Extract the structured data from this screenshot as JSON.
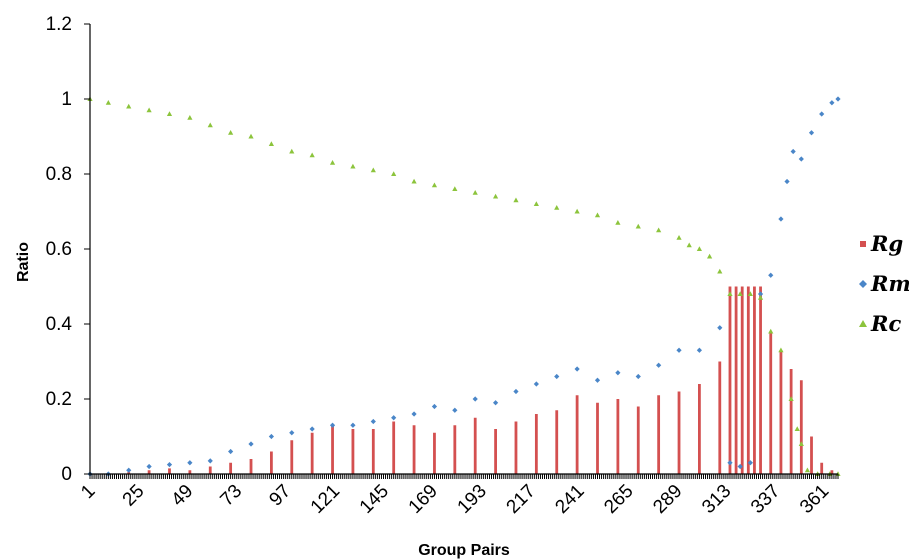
{
  "chart_data": {
    "type": "bar",
    "title": "",
    "xlabel": "Group Pairs",
    "ylabel": "Ratio",
    "xlim": [
      1,
      368
    ],
    "ylim": [
      0,
      1.2
    ],
    "grid": false,
    "legend_position": "right",
    "x_ticks": [
      1,
      25,
      49,
      73,
      97,
      121,
      145,
      169,
      193,
      217,
      241,
      265,
      289,
      313,
      337,
      361
    ],
    "y_ticks": [
      {
        "value": 0,
        "label": "0"
      },
      {
        "value": 0.2,
        "label": "0.2"
      },
      {
        "value": 0.4,
        "label": "0.4"
      },
      {
        "value": 0.6,
        "label": "0.6"
      },
      {
        "value": 0.8,
        "label": "0.8"
      },
      {
        "value": 1,
        "label": "1"
      },
      {
        "value": 1.2,
        "label": "1.2"
      }
    ],
    "series": [
      {
        "name": "Rg",
        "style": "bar",
        "color": "#d45050",
        "points": [
          [
            20,
            0.005
          ],
          [
            30,
            0.01
          ],
          [
            40,
            0.015
          ],
          [
            50,
            0.01
          ],
          [
            60,
            0.02
          ],
          [
            70,
            0.03
          ],
          [
            80,
            0.04
          ],
          [
            90,
            0.06
          ],
          [
            100,
            0.09
          ],
          [
            110,
            0.11
          ],
          [
            120,
            0.13
          ],
          [
            130,
            0.12
          ],
          [
            140,
            0.12
          ],
          [
            150,
            0.14
          ],
          [
            160,
            0.13
          ],
          [
            170,
            0.11
          ],
          [
            180,
            0.13
          ],
          [
            190,
            0.15
          ],
          [
            200,
            0.12
          ],
          [
            210,
            0.14
          ],
          [
            220,
            0.16
          ],
          [
            230,
            0.17
          ],
          [
            240,
            0.21
          ],
          [
            250,
            0.19
          ],
          [
            260,
            0.2
          ],
          [
            270,
            0.18
          ],
          [
            280,
            0.21
          ],
          [
            290,
            0.22
          ],
          [
            300,
            0.24
          ],
          [
            310,
            0.3
          ],
          [
            315,
            0.5
          ],
          [
            318,
            0.5
          ],
          [
            321,
            0.5
          ],
          [
            324,
            0.5
          ],
          [
            327,
            0.5
          ],
          [
            330,
            0.5
          ],
          [
            335,
            0.38
          ],
          [
            340,
            0.33
          ],
          [
            345,
            0.28
          ],
          [
            350,
            0.25
          ],
          [
            355,
            0.1
          ],
          [
            360,
            0.03
          ],
          [
            365,
            0.01
          ]
        ]
      },
      {
        "name": "Rm",
        "style": "scatter-diamond",
        "color": "#4a86c8",
        "points": [
          [
            1,
            0
          ],
          [
            10,
            0
          ],
          [
            20,
            0.01
          ],
          [
            30,
            0.02
          ],
          [
            40,
            0.025
          ],
          [
            50,
            0.03
          ],
          [
            60,
            0.035
          ],
          [
            70,
            0.06
          ],
          [
            80,
            0.08
          ],
          [
            90,
            0.1
          ],
          [
            100,
            0.11
          ],
          [
            110,
            0.12
          ],
          [
            120,
            0.13
          ],
          [
            130,
            0.13
          ],
          [
            140,
            0.14
          ],
          [
            150,
            0.15
          ],
          [
            160,
            0.16
          ],
          [
            170,
            0.18
          ],
          [
            180,
            0.17
          ],
          [
            190,
            0.2
          ],
          [
            200,
            0.19
          ],
          [
            210,
            0.22
          ],
          [
            220,
            0.24
          ],
          [
            230,
            0.26
          ],
          [
            240,
            0.28
          ],
          [
            250,
            0.25
          ],
          [
            260,
            0.27
          ],
          [
            270,
            0.26
          ],
          [
            280,
            0.29
          ],
          [
            290,
            0.33
          ],
          [
            300,
            0.33
          ],
          [
            310,
            0.39
          ],
          [
            315,
            0.03
          ],
          [
            320,
            0.02
          ],
          [
            325,
            0.03
          ],
          [
            330,
            0.48
          ],
          [
            335,
            0.53
          ],
          [
            340,
            0.68
          ],
          [
            343,
            0.78
          ],
          [
            346,
            0.86
          ],
          [
            350,
            0.84
          ],
          [
            355,
            0.91
          ],
          [
            360,
            0.96
          ],
          [
            365,
            0.99
          ],
          [
            368,
            1
          ]
        ]
      },
      {
        "name": "Rc",
        "style": "scatter-triangle",
        "color": "#8cc43c",
        "points": [
          [
            1,
            1
          ],
          [
            10,
            0.99
          ],
          [
            20,
            0.98
          ],
          [
            30,
            0.97
          ],
          [
            40,
            0.96
          ],
          [
            50,
            0.95
          ],
          [
            60,
            0.93
          ],
          [
            70,
            0.91
          ],
          [
            80,
            0.9
          ],
          [
            90,
            0.88
          ],
          [
            100,
            0.86
          ],
          [
            110,
            0.85
          ],
          [
            120,
            0.83
          ],
          [
            130,
            0.82
          ],
          [
            140,
            0.81
          ],
          [
            150,
            0.8
          ],
          [
            160,
            0.78
          ],
          [
            170,
            0.77
          ],
          [
            180,
            0.76
          ],
          [
            190,
            0.75
          ],
          [
            200,
            0.74
          ],
          [
            210,
            0.73
          ],
          [
            220,
            0.72
          ],
          [
            230,
            0.71
          ],
          [
            240,
            0.7
          ],
          [
            250,
            0.69
          ],
          [
            260,
            0.67
          ],
          [
            270,
            0.66
          ],
          [
            280,
            0.65
          ],
          [
            290,
            0.63
          ],
          [
            295,
            0.61
          ],
          [
            300,
            0.6
          ],
          [
            305,
            0.58
          ],
          [
            310,
            0.54
          ],
          [
            315,
            0.48
          ],
          [
            320,
            0.48
          ],
          [
            325,
            0.48
          ],
          [
            330,
            0.47
          ],
          [
            335,
            0.38
          ],
          [
            340,
            0.33
          ],
          [
            345,
            0.2
          ],
          [
            348,
            0.12
          ],
          [
            350,
            0.08
          ],
          [
            353,
            0.01
          ],
          [
            358,
            0
          ],
          [
            364,
            0
          ],
          [
            368,
            0
          ]
        ]
      }
    ]
  }
}
